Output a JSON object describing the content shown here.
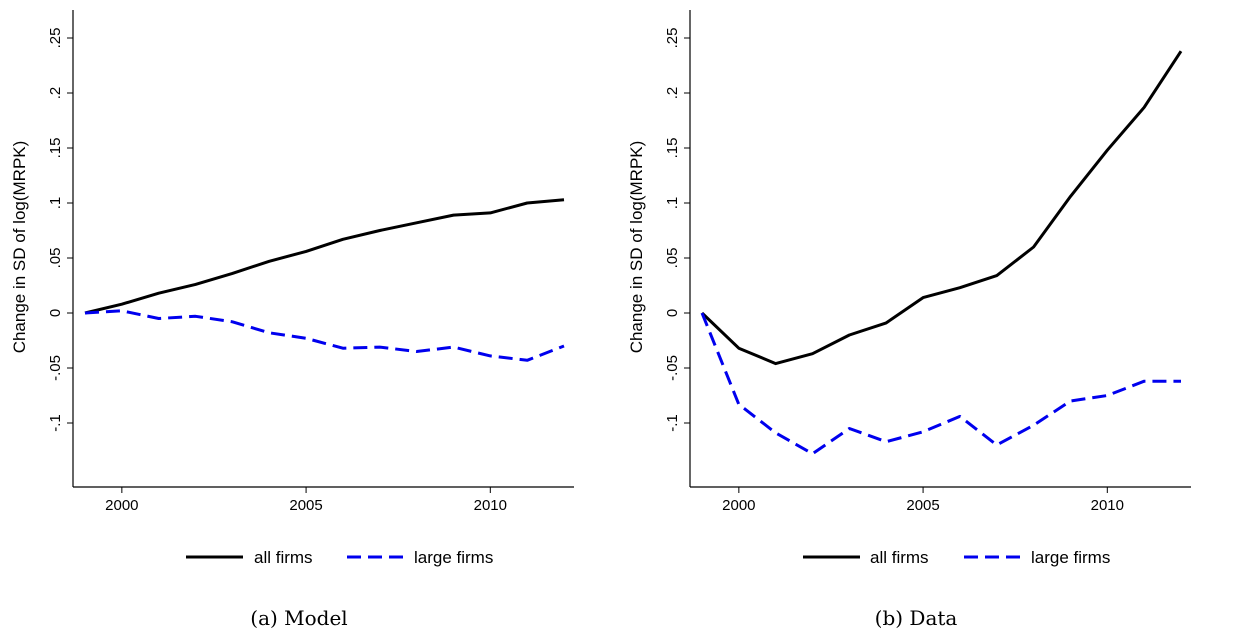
{
  "colors": {
    "all_firms": "#000000",
    "large_firms": "#0000ee",
    "axis": "#000000"
  },
  "panels": [
    {
      "caption": "(a) Model"
    },
    {
      "caption": "(b) Data"
    }
  ],
  "chart_data": [
    {
      "type": "line",
      "title": "",
      "caption": "(a) Model",
      "xlabel": "",
      "ylabel": "Change in SD of log(MRPK)",
      "xlim": [
        1999,
        2012
      ],
      "ylim": [
        -0.15,
        0.26
      ],
      "xticks": [
        2000,
        2005,
        2010
      ],
      "xtick_labels": [
        "2000",
        "2005",
        "2010"
      ],
      "yticks": [
        -0.1,
        -0.05,
        0,
        0.05,
        0.1,
        0.15,
        0.2,
        0.25
      ],
      "ytick_labels": [
        "-.1",
        "-.05",
        "0",
        ".05",
        ".1",
        ".15",
        ".2",
        ".25"
      ],
      "grid": false,
      "legend_position": "bottom",
      "x": [
        1999,
        2000,
        2001,
        2002,
        2003,
        2004,
        2005,
        2006,
        2007,
        2008,
        2009,
        2010,
        2011,
        2012
      ],
      "series": [
        {
          "name": "all firms",
          "style": "solid",
          "values": [
            0,
            0.008,
            0.018,
            0.026,
            0.036,
            0.047,
            0.056,
            0.067,
            0.075,
            0.082,
            0.089,
            0.091,
            0.1,
            0.103
          ]
        },
        {
          "name": "large firms",
          "style": "dashed",
          "values": [
            0,
            0.002,
            -0.005,
            -0.003,
            -0.008,
            -0.018,
            -0.023,
            -0.032,
            -0.031,
            -0.035,
            -0.031,
            -0.039,
            -0.043,
            -0.03
          ]
        }
      ]
    },
    {
      "type": "line",
      "title": "",
      "caption": "(b) Data",
      "xlabel": "",
      "ylabel": "Change in SD of log(MRPK)",
      "xlim": [
        1999,
        2012
      ],
      "ylim": [
        -0.15,
        0.26
      ],
      "xticks": [
        2000,
        2005,
        2010
      ],
      "xtick_labels": [
        "2000",
        "2005",
        "2010"
      ],
      "yticks": [
        -0.1,
        -0.05,
        0,
        0.05,
        0.1,
        0.15,
        0.2,
        0.25
      ],
      "ytick_labels": [
        "-.1",
        "-.05",
        "0",
        ".05",
        ".1",
        ".15",
        ".2",
        ".25"
      ],
      "grid": false,
      "legend_position": "bottom",
      "x": [
        1999,
        2000,
        2001,
        2002,
        2003,
        2004,
        2005,
        2006,
        2007,
        2008,
        2009,
        2010,
        2011,
        2012
      ],
      "series": [
        {
          "name": "all firms",
          "style": "solid",
          "values": [
            0,
            -0.032,
            -0.046,
            -0.037,
            -0.02,
            -0.009,
            0.014,
            0.023,
            0.034,
            0.06,
            0.106,
            0.148,
            0.187,
            0.238
          ]
        },
        {
          "name": "large firms",
          "style": "dashed",
          "values": [
            0,
            -0.083,
            -0.109,
            -0.128,
            -0.105,
            -0.117,
            -0.108,
            -0.094,
            -0.12,
            -0.102,
            -0.08,
            -0.075,
            -0.062,
            -0.062
          ]
        }
      ]
    }
  ]
}
